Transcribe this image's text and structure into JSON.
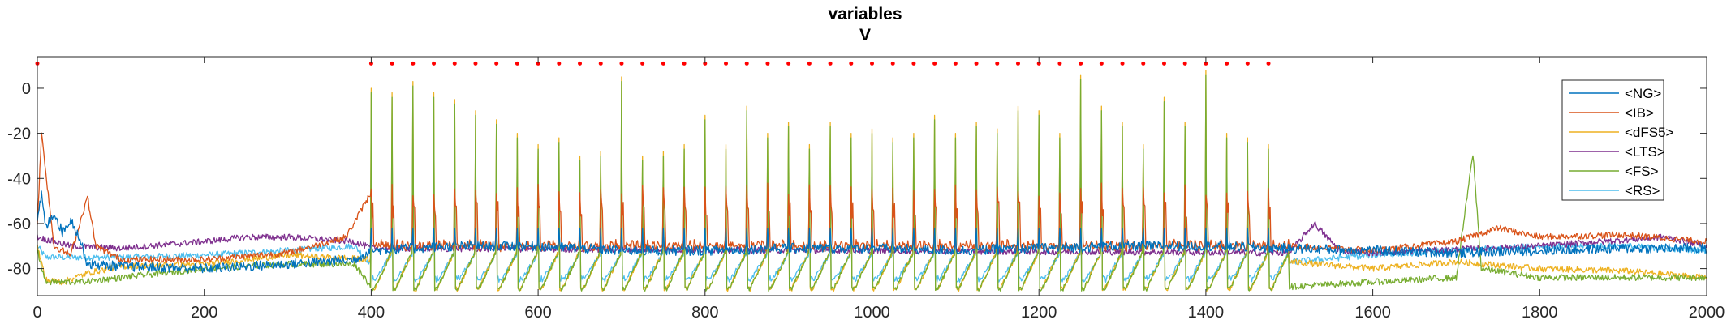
{
  "chart_data": {
    "type": "line",
    "title": "variables",
    "subtitle": "V",
    "xlabel": "",
    "ylabel": "",
    "xlim": [
      0,
      2000
    ],
    "ylim": [
      -92,
      14
    ],
    "xticks": [
      0,
      200,
      400,
      600,
      800,
      1000,
      1200,
      1400,
      1600,
      1800,
      2000
    ],
    "yticks": [
      0,
      -20,
      -40,
      -60,
      -80
    ],
    "grid": false,
    "legend_position": "top-right",
    "stimulus_markers": {
      "color": "#ff0000",
      "y": 11,
      "start": 400,
      "end": 1500,
      "step": 25
    },
    "series": [
      {
        "name": "<NG>",
        "color": "#0072BD",
        "baseline": -80,
        "points": [
          [
            0,
            -60
          ],
          [
            5,
            -47
          ],
          [
            10,
            -62
          ],
          [
            20,
            -55
          ],
          [
            30,
            -64
          ],
          [
            40,
            -58
          ],
          [
            50,
            -66
          ],
          [
            60,
            -78
          ],
          [
            100,
            -79
          ],
          [
            200,
            -80
          ],
          [
            300,
            -78
          ],
          [
            380,
            -76
          ],
          [
            400,
            -72
          ],
          [
            500,
            -70
          ],
          [
            600,
            -70
          ],
          [
            700,
            -72
          ],
          [
            800,
            -72
          ],
          [
            900,
            -71
          ],
          [
            1000,
            -71
          ],
          [
            1100,
            -72
          ],
          [
            1200,
            -71
          ],
          [
            1300,
            -70
          ],
          [
            1400,
            -70
          ],
          [
            1500,
            -71
          ],
          [
            1600,
            -72
          ],
          [
            1700,
            -73
          ],
          [
            1800,
            -72
          ],
          [
            1900,
            -71
          ],
          [
            2000,
            -71
          ]
        ]
      },
      {
        "name": "<IB>",
        "color": "#D95319",
        "baseline": -75,
        "points": [
          [
            0,
            -60
          ],
          [
            5,
            -20
          ],
          [
            20,
            -70
          ],
          [
            40,
            -74
          ],
          [
            60,
            -48
          ],
          [
            70,
            -70
          ],
          [
            100,
            -76
          ],
          [
            200,
            -76
          ],
          [
            300,
            -73
          ],
          [
            370,
            -66
          ],
          [
            400,
            -46
          ],
          [
            420,
            -60
          ],
          [
            600,
            -65
          ],
          [
            700,
            -64
          ],
          [
            800,
            -65
          ],
          [
            900,
            -64
          ],
          [
            1000,
            -64
          ],
          [
            1100,
            -65
          ],
          [
            1250,
            -50
          ],
          [
            1260,
            -63
          ],
          [
            1350,
            -64
          ],
          [
            1395,
            -45
          ],
          [
            1420,
            -62
          ],
          [
            1500,
            -70
          ],
          [
            1600,
            -72
          ],
          [
            1700,
            -68
          ],
          [
            1750,
            -62
          ],
          [
            1800,
            -66
          ],
          [
            1900,
            -65
          ],
          [
            2000,
            -68
          ]
        ]
      },
      {
        "name": "<dFS5>",
        "color": "#EDB120",
        "baseline": -86,
        "points": [
          [
            0,
            -70
          ],
          [
            10,
            -85
          ],
          [
            30,
            -86
          ],
          [
            60,
            -82
          ],
          [
            100,
            -79
          ],
          [
            200,
            -78
          ],
          [
            300,
            -74
          ],
          [
            400,
            -76
          ],
          [
            1500,
            -77
          ],
          [
            1600,
            -80
          ],
          [
            1700,
            -77
          ],
          [
            1800,
            -80
          ],
          [
            1900,
            -81
          ],
          [
            2000,
            -84
          ]
        ]
      },
      {
        "name": "<LTS>",
        "color": "#7E2F8E",
        "baseline": -72,
        "points": [
          [
            0,
            -66
          ],
          [
            40,
            -70
          ],
          [
            100,
            -71
          ],
          [
            200,
            -68
          ],
          [
            250,
            -66
          ],
          [
            300,
            -66
          ],
          [
            380,
            -68
          ],
          [
            400,
            -71
          ],
          [
            1500,
            -73
          ],
          [
            1530,
            -60
          ],
          [
            1560,
            -72
          ],
          [
            1600,
            -73
          ],
          [
            1800,
            -70
          ],
          [
            1950,
            -66
          ],
          [
            2000,
            -70
          ]
        ]
      },
      {
        "name": "<FS>",
        "color": "#77AC30",
        "baseline": -88,
        "points": [
          [
            0,
            -72
          ],
          [
            10,
            -86
          ],
          [
            50,
            -86
          ],
          [
            100,
            -84
          ],
          [
            200,
            -80
          ],
          [
            300,
            -78
          ],
          [
            380,
            -78
          ],
          [
            400,
            -88
          ],
          [
            1500,
            -88
          ],
          [
            1600,
            -86
          ],
          [
            1700,
            -84
          ],
          [
            1720,
            -29
          ],
          [
            1730,
            -80
          ],
          [
            1800,
            -84
          ],
          [
            1900,
            -84
          ],
          [
            2000,
            -84
          ]
        ]
      },
      {
        "name": "<RS>",
        "color": "#4DBEEE",
        "baseline": -78,
        "points": [
          [
            0,
            -70
          ],
          [
            10,
            -75
          ],
          [
            100,
            -75
          ],
          [
            200,
            -74
          ],
          [
            300,
            -72
          ],
          [
            380,
            -70
          ],
          [
            400,
            -78
          ],
          [
            1500,
            -77
          ],
          [
            1600,
            -74
          ],
          [
            1700,
            -72
          ],
          [
            1800,
            -70
          ],
          [
            1900,
            -70
          ],
          [
            2000,
            -72
          ]
        ]
      }
    ],
    "spike_train": {
      "times": [
        400,
        425,
        450,
        475,
        500,
        525,
        550,
        575,
        600,
        625,
        650,
        675,
        700,
        725,
        750,
        775,
        800,
        825,
        850,
        875,
        900,
        925,
        950,
        975,
        1000,
        1025,
        1050,
        1075,
        1100,
        1125,
        1150,
        1175,
        1200,
        1225,
        1250,
        1275,
        1300,
        1325,
        1350,
        1375,
        1400,
        1425,
        1450,
        1475
      ],
      "peaks": [
        0,
        -2,
        3,
        -2,
        -5,
        -10,
        -14,
        -20,
        -25,
        -22,
        -30,
        -28,
        5,
        -30,
        -28,
        -25,
        -12,
        -25,
        -8,
        -20,
        -15,
        -25,
        -15,
        -20,
        -18,
        -22,
        -20,
        -12,
        -20,
        -15,
        -18,
        -8,
        -10,
        -20,
        6,
        -8,
        -15,
        -25,
        -4,
        -15,
        8,
        -20,
        -22,
        -25
      ],
      "trough": -90
    }
  },
  "legend": {
    "entries": [
      "<NG>",
      "<IB>",
      "<dFS5>",
      "<LTS>",
      "<FS>",
      "<RS>"
    ]
  }
}
